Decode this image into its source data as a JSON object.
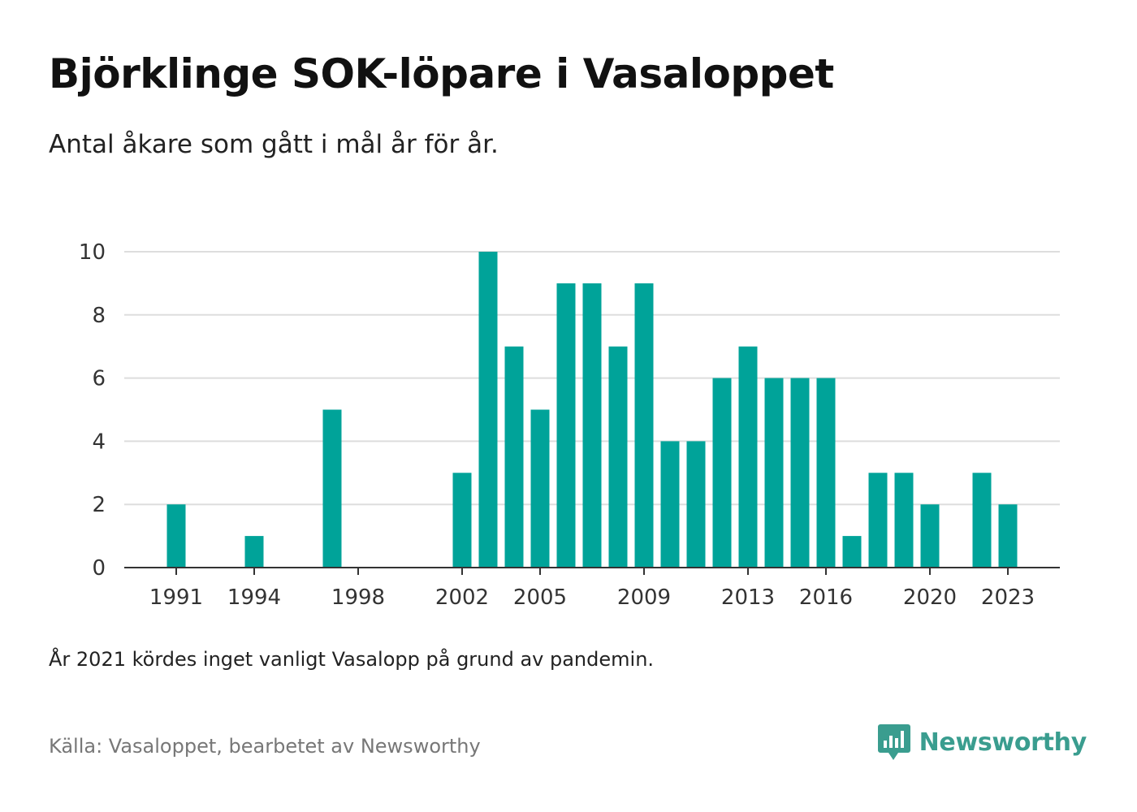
{
  "title": "Björklinge SOK-löpare i Vasaloppet",
  "subtitle": "Antal åkare som gått i mål år för år.",
  "note": "År 2021 kördes inget vanligt Vasalopp på grund av pandemin.",
  "source": "Källa: Vasaloppet, bearbetet av Newsworthy",
  "brand": {
    "name": "Newsworthy",
    "icon": "newsworthy-logo-icon"
  },
  "colors": {
    "bar": "#00a399",
    "grid": "#dddddd",
    "axis": "#333333",
    "brand": "#3a9d8f"
  },
  "chart_data": {
    "type": "bar",
    "x": [
      1991,
      1994,
      1997,
      2002,
      2003,
      2004,
      2005,
      2006,
      2007,
      2008,
      2009,
      2010,
      2011,
      2012,
      2013,
      2014,
      2015,
      2016,
      2017,
      2018,
      2019,
      2020,
      2022,
      2023
    ],
    "values": [
      2,
      1,
      5,
      3,
      10,
      7,
      5,
      9,
      9,
      7,
      9,
      4,
      4,
      6,
      7,
      6,
      6,
      6,
      1,
      3,
      3,
      2,
      3,
      2
    ],
    "x_ticks": [
      1991,
      1994,
      1998,
      2002,
      2005,
      2009,
      2013,
      2016,
      2020,
      2023
    ],
    "y_ticks": [
      0,
      2,
      4,
      6,
      8,
      10
    ],
    "xlim": [
      1989,
      2025
    ],
    "ylim": [
      0,
      10
    ],
    "grid": true,
    "legend": "none"
  }
}
